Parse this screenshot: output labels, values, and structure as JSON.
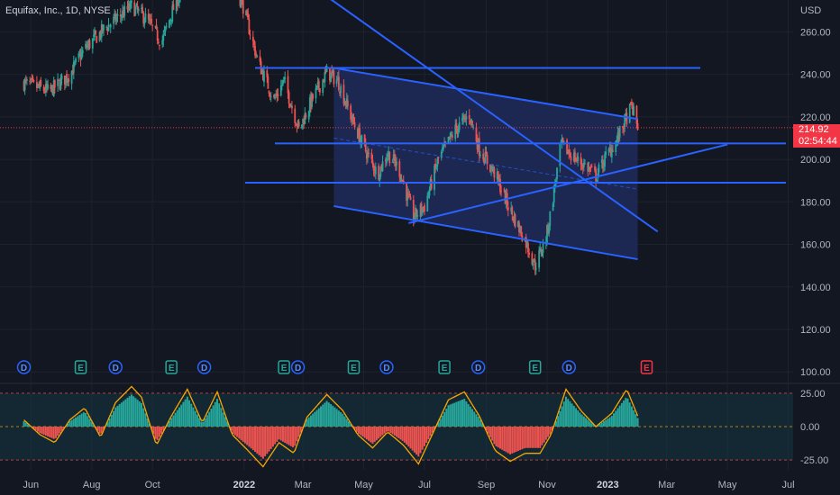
{
  "header": {
    "symbol_title": "Equifax, Inc., 1D, NYSE"
  },
  "price_axis": {
    "currency": "USD",
    "last_price": "214.92",
    "countdown": "02:54:44"
  },
  "colors": {
    "background": "#131722",
    "up": "#26a69a",
    "down": "#ef5350",
    "drawing": "#2962ff",
    "channel_fill": "#1e2a5a",
    "last_price": "#f23645",
    "osc_line": "#f7a600",
    "osc_band": "#163341"
  },
  "chart_data": [
    {
      "type": "candlestick",
      "xlabel": "",
      "ylabel": "",
      "x_tick_labels": [
        "Jun",
        "Aug",
        "Oct",
        "2022",
        "Mar",
        "May",
        "Jul",
        "Sep",
        "Nov",
        "2023",
        "Mar",
        "May",
        "Jul"
      ],
      "y_tick_labels": [
        "260.00",
        "240.00",
        "220.00",
        "200.00",
        "180.00",
        "160.00",
        "140.00",
        "120.00",
        "100.00"
      ],
      "ylim": [
        95,
        275
      ],
      "last_price": 214.92,
      "price_path": [
        [
          "2021-05-25",
          236
        ],
        [
          "2021-06-20",
          232
        ],
        [
          "2021-07-10",
          240
        ],
        [
          "2021-07-25",
          252
        ],
        [
          "2021-08-15",
          262
        ],
        [
          "2021-09-10",
          272
        ],
        [
          "2021-09-25",
          266
        ],
        [
          "2021-10-10",
          255
        ],
        [
          "2021-10-25",
          275
        ],
        [
          "2021-11-15",
          285
        ],
        [
          "2021-12-15",
          290
        ],
        [
          "2021-12-31",
          272
        ],
        [
          "2022-01-15",
          246
        ],
        [
          "2022-01-31",
          228
        ],
        [
          "2022-02-10",
          237
        ],
        [
          "2022-02-25",
          214
        ],
        [
          "2022-03-10",
          228
        ],
        [
          "2022-03-25",
          241
        ],
        [
          "2022-04-05",
          237
        ],
        [
          "2022-04-20",
          218
        ],
        [
          "2022-05-01",
          206
        ],
        [
          "2022-05-15",
          193
        ],
        [
          "2022-05-25",
          203
        ],
        [
          "2022-06-05",
          196
        ],
        [
          "2022-06-20",
          173
        ],
        [
          "2022-07-01",
          178
        ],
        [
          "2022-07-15",
          200
        ],
        [
          "2022-08-01",
          214
        ],
        [
          "2022-08-15",
          221
        ],
        [
          "2022-08-25",
          205
        ],
        [
          "2022-09-10",
          193
        ],
        [
          "2022-09-25",
          176
        ],
        [
          "2022-10-10",
          162
        ],
        [
          "2022-10-20",
          150
        ],
        [
          "2022-10-31",
          163
        ],
        [
          "2022-11-05",
          176
        ],
        [
          "2022-11-15",
          207
        ],
        [
          "2022-11-30",
          200
        ],
        [
          "2022-12-10",
          197
        ],
        [
          "2022-12-20",
          192
        ],
        [
          "2022-12-31",
          202
        ],
        [
          "2023-01-10",
          209
        ],
        [
          "2023-01-20",
          220
        ],
        [
          "2023-01-25",
          225
        ],
        [
          "2023-01-31",
          215
        ]
      ],
      "annotations": {
        "horizontal_levels": [
          243,
          207.5,
          189
        ],
        "trendlines": [
          [
            [
              "2022-04-01",
              243
            ],
            [
              "2023-01-31",
              219
            ]
          ],
          [
            [
              "2022-04-01",
              178
            ],
            [
              "2023-01-31",
              153
            ]
          ],
          [
            [
              "2022-06-15",
              170
            ],
            [
              "2023-05-01",
              207
            ]
          ],
          [
            [
              "2022-03-15",
              280
            ],
            [
              "2023-02-20",
              166
            ]
          ],
          [
            [
              "2022-04-01",
              210
            ],
            [
              "2023-01-31",
              186
            ]
          ]
        ],
        "channel": [
          [
            "2022-04-01",
            243
          ],
          [
            "2023-01-31",
            219
          ],
          [
            "2023-01-31",
            153
          ],
          [
            "2022-04-01",
            178
          ]
        ]
      },
      "events": [
        {
          "date": "2021-05-25",
          "kind": "D"
        },
        {
          "date": "2021-07-21",
          "kind": "E"
        },
        {
          "date": "2021-08-25",
          "kind": "D"
        },
        {
          "date": "2021-10-20",
          "kind": "E"
        },
        {
          "date": "2021-11-22",
          "kind": "D"
        },
        {
          "date": "2022-02-10",
          "kind": "E"
        },
        {
          "date": "2022-02-24",
          "kind": "D"
        },
        {
          "date": "2022-04-21",
          "kind": "E"
        },
        {
          "date": "2022-05-24",
          "kind": "D"
        },
        {
          "date": "2022-07-21",
          "kind": "E"
        },
        {
          "date": "2022-08-24",
          "kind": "D"
        },
        {
          "date": "2022-10-20",
          "kind": "E"
        },
        {
          "date": "2022-11-23",
          "kind": "D"
        },
        {
          "date": "2023-02-09",
          "kind": "E"
        }
      ]
    },
    {
      "type": "area",
      "y_tick_labels": [
        "25.00",
        "0.00",
        "-25.00"
      ],
      "ylim": [
        -31,
        31
      ],
      "overbought": 25,
      "oversold": -25,
      "oscillator_path": [
        [
          "2021-05-25",
          5
        ],
        [
          "2021-06-10",
          -6
        ],
        [
          "2021-06-25",
          -12
        ],
        [
          "2021-07-10",
          5
        ],
        [
          "2021-07-25",
          14
        ],
        [
          "2021-08-10",
          -8
        ],
        [
          "2021-08-25",
          18
        ],
        [
          "2021-09-10",
          30
        ],
        [
          "2021-09-20",
          22
        ],
        [
          "2021-10-05",
          -14
        ],
        [
          "2021-10-20",
          8
        ],
        [
          "2021-11-05",
          28
        ],
        [
          "2021-11-20",
          3
        ],
        [
          "2021-12-05",
          26
        ],
        [
          "2021-12-20",
          -6
        ],
        [
          "2022-01-05",
          -18
        ],
        [
          "2022-01-20",
          -30
        ],
        [
          "2022-02-05",
          -12
        ],
        [
          "2022-02-20",
          -20
        ],
        [
          "2022-03-05",
          7
        ],
        [
          "2022-03-25",
          24
        ],
        [
          "2022-04-10",
          12
        ],
        [
          "2022-04-25",
          -6
        ],
        [
          "2022-05-10",
          -16
        ],
        [
          "2022-05-25",
          -4
        ],
        [
          "2022-06-10",
          -14
        ],
        [
          "2022-06-25",
          -28
        ],
        [
          "2022-07-10",
          -4
        ],
        [
          "2022-07-25",
          20
        ],
        [
          "2022-08-10",
          26
        ],
        [
          "2022-08-25",
          8
        ],
        [
          "2022-09-10",
          -18
        ],
        [
          "2022-09-25",
          -26
        ],
        [
          "2022-10-10",
          -20
        ],
        [
          "2022-10-25",
          -20
        ],
        [
          "2022-11-05",
          -6
        ],
        [
          "2022-11-20",
          28
        ],
        [
          "2022-12-05",
          12
        ],
        [
          "2022-12-20",
          0
        ],
        [
          "2023-01-05",
          10
        ],
        [
          "2023-01-20",
          28
        ],
        [
          "2023-01-31",
          8
        ]
      ]
    }
  ]
}
